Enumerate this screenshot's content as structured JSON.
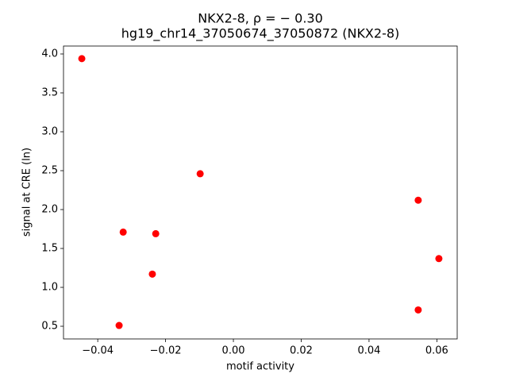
{
  "chart_data": {
    "type": "scatter",
    "title": "NKX2-8, ρ = − 0.30",
    "subtitle": "hg19_chr14_37050674_37050872 (NKX2-8)",
    "x_label": "motif activity",
    "y_label": "signal at CRE (ln)",
    "color": "#ff0000",
    "x": [
      -0.0447,
      -0.0098,
      0.0545,
      -0.0325,
      -0.0229,
      0.0606,
      -0.0239,
      0.0545,
      -0.0337
    ],
    "values": [
      3.94,
      2.46,
      2.12,
      1.71,
      1.69,
      1.37,
      1.17,
      0.71,
      0.51
    ],
    "xlim": [
      -0.0501,
      0.066
    ],
    "ylim": [
      0.337,
      4.102
    ],
    "xticks": [
      {
        "value": -0.04,
        "label": "−0.04"
      },
      {
        "value": -0.02,
        "label": "−0.02"
      },
      {
        "value": 0,
        "label": "0.00"
      },
      0.02,
      0.04,
      0.06
    ],
    "yticks": [
      0.5,
      {
        "value": 1,
        "label": "1.0"
      },
      1.5,
      {
        "value": 2,
        "label": "2.0"
      },
      2.5,
      {
        "value": 3,
        "label": "3.0"
      },
      3.5,
      {
        "value": 4,
        "label": "4.0"
      }
    ],
    "grid": false
  }
}
